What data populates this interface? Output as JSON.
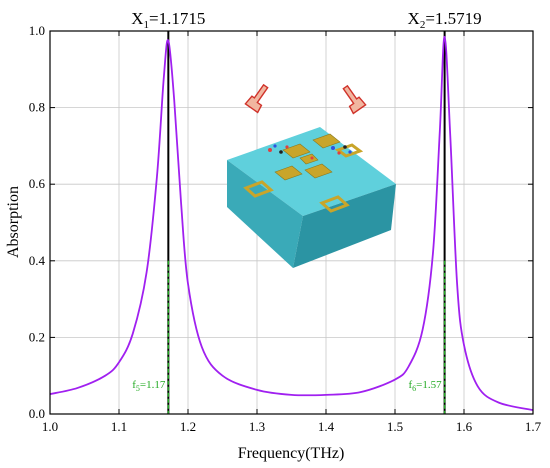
{
  "chart_data": {
    "type": "line",
    "xlabel": "Frequency(THz)",
    "ylabel": "Absorption",
    "xlim": [
      1.0,
      1.7
    ],
    "ylim": [
      0.0,
      1.0
    ],
    "xticks": [
      "1.0",
      "1.1",
      "1.2",
      "1.3",
      "1.4",
      "1.5",
      "1.6",
      "1.7"
    ],
    "yticks": [
      "0.0",
      "0.2",
      "0.4",
      "0.6",
      "0.8",
      "1.0"
    ],
    "grid": true,
    "series": [
      {
        "color": "#a020f0",
        "x": [
          1.0,
          1.04,
          1.08,
          1.1,
          1.12,
          1.14,
          1.155,
          1.165,
          1.1715,
          1.18,
          1.19,
          1.2,
          1.22,
          1.25,
          1.3,
          1.35,
          1.4,
          1.45,
          1.5,
          1.52,
          1.54,
          1.555,
          1.565,
          1.5719,
          1.58,
          1.59,
          1.6,
          1.62,
          1.65,
          1.7
        ],
        "y": [
          0.052,
          0.068,
          0.1,
          0.135,
          0.21,
          0.37,
          0.62,
          0.88,
          0.975,
          0.82,
          0.55,
          0.34,
          0.175,
          0.1,
          0.063,
          0.05,
          0.05,
          0.057,
          0.09,
          0.125,
          0.22,
          0.42,
          0.74,
          0.985,
          0.73,
          0.34,
          0.18,
          0.072,
          0.03,
          0.01
        ]
      }
    ],
    "markers": [
      {
        "x": 1.1715,
        "label_main": "X",
        "label_sub": "1",
        "label_value": "=1.1715",
        "green_main": "f",
        "green_sub": "5",
        "green_value": "=1.17"
      },
      {
        "x": 1.5719,
        "label_main": "X",
        "label_sub": "2",
        "label_value": "=1.5719",
        "green_main": "f",
        "green_sub": "6",
        "green_value": "=1.57"
      }
    ],
    "green_line_top": 0.4
  },
  "colors": {
    "curve": "#a020f0",
    "marker_line": "#000000",
    "green_dash": "#22aa22",
    "grid": "#c8c8c8",
    "substrate": "#4fc3cf",
    "metal": "#b8a030"
  },
  "icons": [
    "pointing-hand-icon-left",
    "pointing-hand-icon-right",
    "metamaterial-unit-cell-illustration"
  ]
}
